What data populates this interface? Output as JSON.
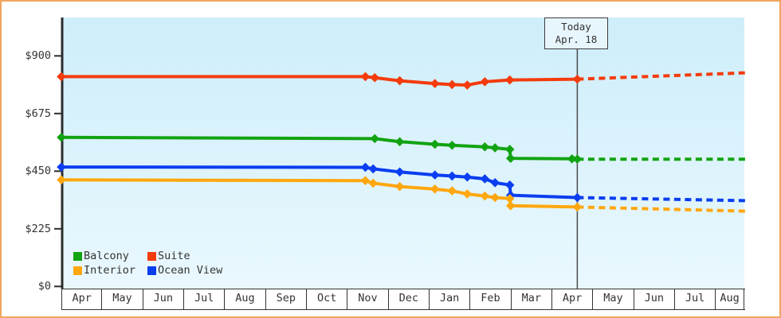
{
  "colors": {
    "frame_border": "#f0a55f",
    "plot_bg_top": "#cdeefa",
    "plot_bg_bottom": "#eaf8fe",
    "axis": "#2d2d2d",
    "text": "#333333",
    "today_line": "#4a4a4a",
    "today_box_bg": "#e7f6fc",
    "today_box_border": "#3c3c3c"
  },
  "chart_data": {
    "type": "line",
    "title": "",
    "x_months": [
      "Apr",
      "May",
      "Jun",
      "Jul",
      "Aug",
      "Sep",
      "Oct",
      "Nov",
      "Dec",
      "Jan",
      "Feb",
      "Mar",
      "Apr",
      "May",
      "Jun",
      "Jul",
      "Aug"
    ],
    "y_ticks": [
      {
        "label": "$900",
        "value": 900
      },
      {
        "label": "$675",
        "value": 675
      },
      {
        "label": "$450",
        "value": 450
      },
      {
        "label": "$225",
        "value": 225
      },
      {
        "label": "$0",
        "value": 0
      }
    ],
    "ylim": [
      0,
      900
    ],
    "grid": false,
    "legend_position": "bottom-left",
    "today": {
      "label": "Today",
      "date": "Apr. 18",
      "month_offset": 12.61
    },
    "series": [
      {
        "name": "Suite",
        "color": "#f43b0c",
        "points": [
          [
            0,
            819
          ],
          [
            7.43,
            819
          ],
          [
            7.66,
            815
          ],
          [
            8.27,
            803
          ],
          [
            9.13,
            792
          ],
          [
            9.55,
            788
          ],
          [
            9.92,
            786
          ],
          [
            10.35,
            799
          ],
          [
            10.96,
            806
          ],
          [
            12.61,
            809
          ]
        ],
        "forecast": [
          [
            12.61,
            809
          ],
          [
            16.72,
            834
          ]
        ]
      },
      {
        "name": "Balcony",
        "color": "#12a312",
        "points": [
          [
            0,
            582
          ],
          [
            7.66,
            577
          ],
          [
            8.27,
            565
          ],
          [
            9.13,
            555
          ],
          [
            9.55,
            551
          ],
          [
            10.35,
            545
          ],
          [
            10.6,
            541
          ],
          [
            10.96,
            535
          ],
          [
            10.98,
            500
          ],
          [
            12.48,
            498
          ],
          [
            12.61,
            497
          ]
        ],
        "forecast": [
          [
            12.61,
            497
          ],
          [
            16.72,
            497
          ]
        ]
      },
      {
        "name": "Ocean View",
        "color": "#0a3ef0",
        "points": [
          [
            0,
            466
          ],
          [
            7.43,
            465
          ],
          [
            7.62,
            459
          ],
          [
            8.27,
            447
          ],
          [
            9.13,
            435
          ],
          [
            9.55,
            431
          ],
          [
            9.92,
            427
          ],
          [
            10.35,
            420
          ],
          [
            10.6,
            405
          ],
          [
            10.96,
            396
          ],
          [
            10.98,
            356
          ],
          [
            12.61,
            347
          ]
        ],
        "forecast": [
          [
            12.61,
            347
          ],
          [
            16.72,
            335
          ]
        ]
      },
      {
        "name": "Interior",
        "color": "#ffa70f",
        "points": [
          [
            0,
            416
          ],
          [
            7.43,
            413
          ],
          [
            7.62,
            403
          ],
          [
            8.27,
            390
          ],
          [
            9.13,
            380
          ],
          [
            9.55,
            373
          ],
          [
            9.92,
            361
          ],
          [
            10.35,
            353
          ],
          [
            10.6,
            347
          ],
          [
            10.96,
            343
          ],
          [
            10.98,
            315
          ],
          [
            12.61,
            310
          ]
        ],
        "forecast": [
          [
            12.61,
            310
          ],
          [
            16.72,
            294
          ]
        ]
      }
    ],
    "legend": [
      {
        "label": "Balcony",
        "color": "#12a312"
      },
      {
        "label": "Suite",
        "color": "#f43b0c"
      },
      {
        "label": "Interior",
        "color": "#ffa70f"
      },
      {
        "label": "Ocean View",
        "color": "#0a3ef0"
      }
    ]
  }
}
